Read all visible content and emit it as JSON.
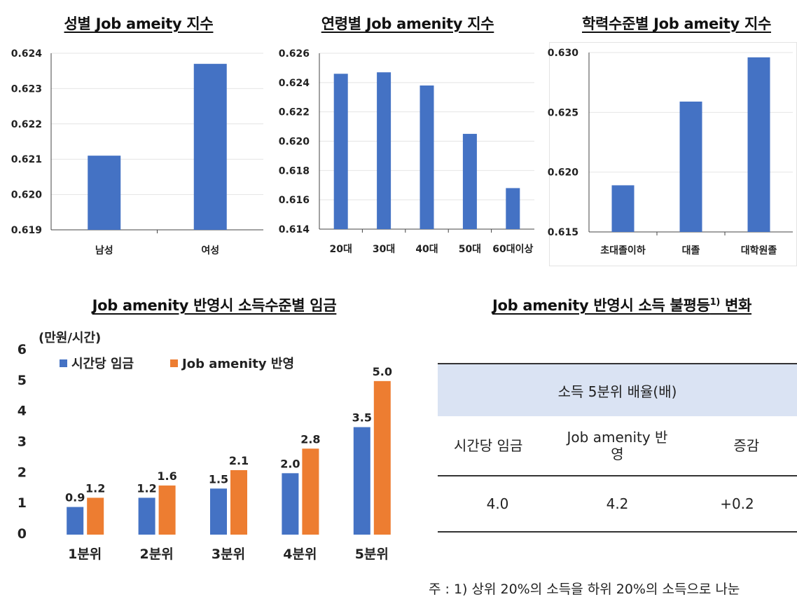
{
  "chart_data": [
    {
      "type": "bar",
      "title": "성별 Job ameity 지수",
      "categories": [
        "남성",
        "여성"
      ],
      "values": [
        0.6211,
        0.6237
      ],
      "ylim": [
        0.619,
        0.624
      ],
      "yticks": [
        "0.619",
        "0.620",
        "0.621",
        "0.622",
        "0.623",
        "0.624"
      ],
      "grid": true,
      "color": "#4472c4"
    },
    {
      "type": "bar",
      "title": "연령별 Job amenity 지수",
      "categories": [
        "20대",
        "30대",
        "40대",
        "50대",
        "60대이상"
      ],
      "values": [
        0.6246,
        0.6247,
        0.6238,
        0.6205,
        0.6168
      ],
      "ylim": [
        0.614,
        0.626
      ],
      "yticks": [
        "0.614",
        "0.616",
        "0.618",
        "0.620",
        "0.622",
        "0.624",
        "0.626"
      ],
      "grid": true,
      "color": "#4472c4"
    },
    {
      "type": "bar",
      "title": "학력수준별 Job ameity 지수",
      "categories": [
        "초대졸이하",
        "대졸",
        "대학원졸"
      ],
      "values": [
        0.6189,
        0.6259,
        0.6296
      ],
      "ylim": [
        0.615,
        0.63
      ],
      "yticks": [
        "0.615",
        "0.620",
        "0.625",
        "0.630"
      ],
      "grid": true,
      "color": "#4472c4"
    },
    {
      "type": "bar",
      "title": "Job amenity 반영시 소득수준별 임금",
      "unit": "(만원/시간)",
      "categories": [
        "1분위",
        "2분위",
        "3분위",
        "4분위",
        "5분위"
      ],
      "series": [
        {
          "name": "시간당 임금",
          "values": [
            0.9,
            1.2,
            1.5,
            2.0,
            3.5
          ],
          "labels": [
            "0.9",
            "1.2",
            "1.5",
            "2.0",
            "3.5"
          ],
          "color": "#4472c4"
        },
        {
          "name": "Job amenity 반영",
          "values": [
            1.2,
            1.6,
            2.1,
            2.8,
            5.0
          ],
          "labels": [
            "1.2",
            "1.6",
            "2.1",
            "2.8",
            "5.0"
          ],
          "color": "#ed7d31"
        }
      ],
      "ylim": [
        0,
        6
      ],
      "yticks": [
        "0",
        "1",
        "2",
        "3",
        "4",
        "5",
        "6"
      ],
      "grid": false,
      "legend": "top-left"
    }
  ],
  "table": {
    "title": "Job amenity 반영시 소득 불평등",
    "title_sup": "1)",
    "title_tail": " 변화",
    "header": "소득 5분위 배율(배)",
    "columns": [
      "시간당 임금",
      "Job amenity 반영",
      "증감"
    ],
    "values": [
      "4.0",
      "4.2",
      "+0.2"
    ]
  },
  "footnote": "주 : 1) 상위 20%의 소득을 하위 20%의 소득으로 나눈"
}
